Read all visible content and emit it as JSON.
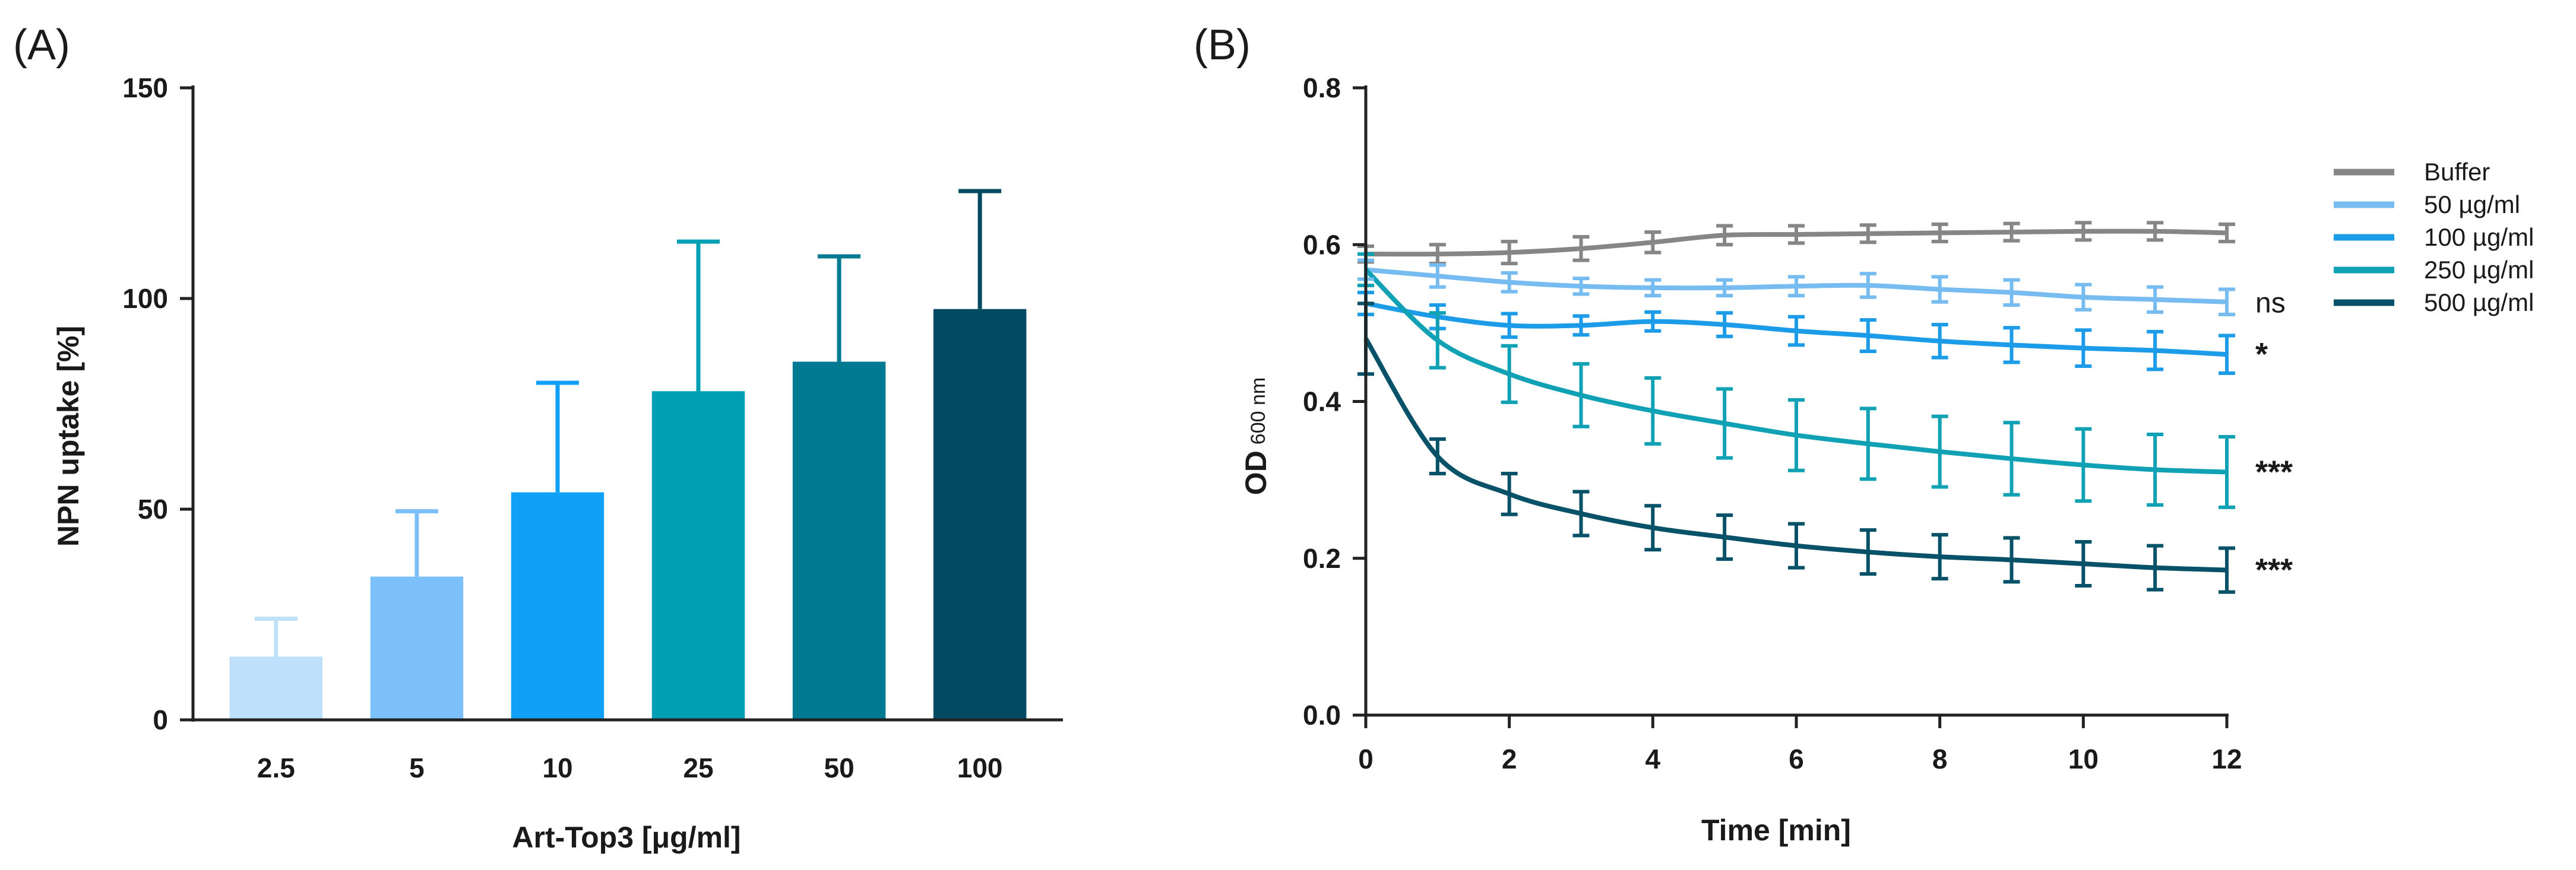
{
  "chart_data": [
    {
      "panel_label": "(A)",
      "type": "bar",
      "xlabel": "Art-Top3 [μg/ml]",
      "ylabel": "NPN uptake [%]",
      "ylim": [
        0,
        150
      ],
      "y_ticks": [
        "0",
        "50",
        "100",
        "150"
      ],
      "y_tick_values": [
        0,
        50,
        100,
        150
      ],
      "categories": [
        "2.5",
        "5",
        "10",
        "25",
        "50",
        "100"
      ],
      "values": [
        15,
        34,
        54,
        78,
        85,
        97.5
      ],
      "error_upper": [
        24,
        49.5,
        80,
        113.5,
        110,
        125.5
      ],
      "colors": [
        "#bee0fa",
        "#7cc0fb",
        "#10a0f8",
        "#00a0b4",
        "#007a92",
        "#024a62"
      ]
    },
    {
      "panel_label": "(B)",
      "type": "line",
      "xlabel": "Time [min]",
      "ylabel_main": "OD",
      "ylabel_sub": "600 nm",
      "xlim": [
        0,
        12
      ],
      "ylim": [
        0,
        0.8
      ],
      "x_ticks": [
        "0",
        "2",
        "4",
        "6",
        "8",
        "10",
        "12"
      ],
      "x_tick_values": [
        0,
        2,
        4,
        6,
        8,
        10,
        12
      ],
      "y_ticks": [
        "0.0",
        "0.2",
        "0.4",
        "0.6",
        "0.8"
      ],
      "y_tick_values": [
        0,
        0.2,
        0.4,
        0.6,
        0.8
      ],
      "x": [
        0,
        1,
        2,
        3,
        4,
        5,
        6,
        7,
        8,
        9,
        10,
        11,
        12
      ],
      "series": [
        {
          "name": "Buffer",
          "color": "#868686",
          "significance": "",
          "values": [
            0.588,
            0.588,
            0.59,
            0.595,
            0.603,
            0.612,
            0.613,
            0.614,
            0.615,
            0.616,
            0.617,
            0.617,
            0.615
          ],
          "errors": [
            0.01,
            0.012,
            0.014,
            0.015,
            0.013,
            0.012,
            0.011,
            0.011,
            0.011,
            0.011,
            0.011,
            0.011,
            0.011
          ]
        },
        {
          "name": "50 µg/ml",
          "color": "#76bcf0",
          "significance": "ns",
          "values": [
            0.568,
            0.56,
            0.552,
            0.547,
            0.545,
            0.545,
            0.547,
            0.548,
            0.543,
            0.539,
            0.533,
            0.53,
            0.527
          ],
          "errors": [
            0.012,
            0.014,
            0.012,
            0.01,
            0.01,
            0.01,
            0.012,
            0.015,
            0.016,
            0.016,
            0.016,
            0.016,
            0.016
          ]
        },
        {
          "name": "100 µg/ml",
          "color": "#1b9be8",
          "significance": "*",
          "values": [
            0.525,
            0.508,
            0.497,
            0.497,
            0.502,
            0.498,
            0.49,
            0.484,
            0.477,
            0.472,
            0.468,
            0.465,
            0.46
          ],
          "errors": [
            0.014,
            0.015,
            0.015,
            0.012,
            0.012,
            0.015,
            0.018,
            0.02,
            0.021,
            0.022,
            0.023,
            0.024,
            0.024
          ]
        },
        {
          "name": "250 µg/ml",
          "color": "#10a2b4",
          "significance": "***",
          "values": [
            0.568,
            0.478,
            0.435,
            0.408,
            0.388,
            0.372,
            0.357,
            0.346,
            0.336,
            0.327,
            0.319,
            0.313,
            0.31
          ],
          "errors": [
            0.02,
            0.035,
            0.036,
            0.04,
            0.042,
            0.044,
            0.045,
            0.045,
            0.045,
            0.046,
            0.046,
            0.045,
            0.045
          ]
        },
        {
          "name": "500 µg/ml",
          "color": "#075169",
          "significance": "***",
          "values": [
            0.48,
            0.33,
            0.282,
            0.257,
            0.239,
            0.227,
            0.216,
            0.208,
            0.202,
            0.198,
            0.193,
            0.188,
            0.185
          ],
          "errors": [
            0.045,
            0.022,
            0.026,
            0.028,
            0.028,
            0.028,
            0.028,
            0.028,
            0.028,
            0.028,
            0.028,
            0.028,
            0.028
          ]
        }
      ],
      "legend_position": "top-right"
    }
  ]
}
